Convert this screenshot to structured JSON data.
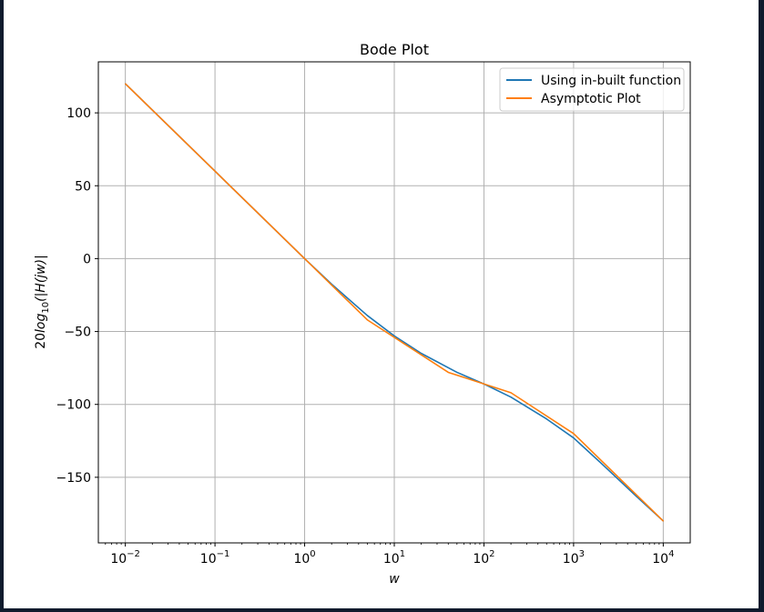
{
  "chart_data": {
    "type": "line",
    "title": "Bode Plot",
    "xlabel": "w",
    "ylabel_parts": {
      "pre": "20",
      "log": "log",
      "sub": "10",
      "post": "(|H(jw)|"
    },
    "xscale": "log",
    "xlim": [
      0.005,
      20000
    ],
    "ylim": [
      -195,
      135
    ],
    "x_ticks": [
      {
        "value": 0.01,
        "base": "10",
        "exp": "−2"
      },
      {
        "value": 0.1,
        "base": "10",
        "exp": "−1"
      },
      {
        "value": 1,
        "base": "10",
        "exp": "0"
      },
      {
        "value": 10,
        "base": "10",
        "exp": "1"
      },
      {
        "value": 100,
        "base": "10",
        "exp": "2"
      },
      {
        "value": 1000,
        "base": "10",
        "exp": "3"
      },
      {
        "value": 10000,
        "base": "10",
        "exp": "4"
      }
    ],
    "y_ticks": [
      {
        "value": 100,
        "label": "100"
      },
      {
        "value": 50,
        "label": "50"
      },
      {
        "value": 0,
        "label": "0"
      },
      {
        "value": -50,
        "label": "−50"
      },
      {
        "value": -100,
        "label": "−100"
      },
      {
        "value": -150,
        "label": "−150"
      }
    ],
    "grid": true,
    "legend_position": "top-right",
    "series": [
      {
        "name": "Using in-built function",
        "color": "#1f77b4",
        "x": [
          0.01,
          0.1,
          1,
          2,
          5,
          10,
          20,
          50,
          100,
          200,
          500,
          1000,
          2000,
          5000,
          10000
        ],
        "y": [
          120,
          60,
          0,
          -17.5,
          -39,
          -53,
          -65,
          -78,
          -86,
          -95,
          -110,
          -123,
          -140,
          -163,
          -180
        ]
      },
      {
        "name": "Asymptotic Plot",
        "color": "#ff7f0e",
        "x": [
          0.01,
          0.1,
          1,
          5,
          40,
          200,
          1000,
          10000
        ],
        "y": [
          120,
          60,
          0,
          -42,
          -78,
          -92,
          -120,
          -180
        ]
      }
    ]
  }
}
